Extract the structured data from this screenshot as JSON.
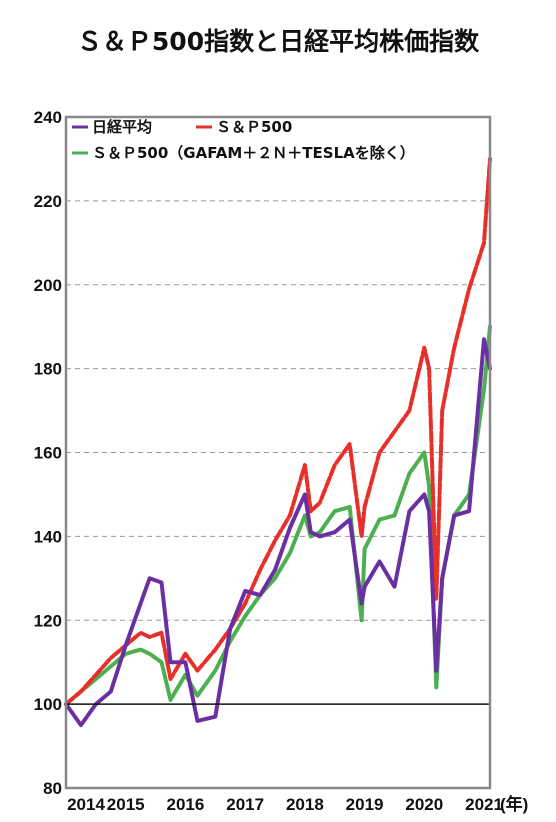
{
  "chart_data": {
    "type": "line",
    "title": "Ｓ＆Ｐ500指数と日経平均株価指数",
    "x_unit_label": "(年)",
    "x_ticks": [
      "2014",
      "2015",
      "2016",
      "2017",
      "2018",
      "2019",
      "2020",
      "2021"
    ],
    "y_ticks": [
      "80",
      "100",
      "120",
      "140",
      "160",
      "180",
      "200",
      "220",
      "240"
    ],
    "xlim": [
      2014.0,
      2021.1
    ],
    "ylim": [
      80,
      240
    ],
    "reference_line": 100,
    "grid": "horizontal dashed",
    "legend_position": "top-left",
    "x": [
      2014.0,
      2014.25,
      2014.5,
      2014.75,
      2015.0,
      2015.25,
      2015.4,
      2015.6,
      2015.75,
      2016.0,
      2016.2,
      2016.5,
      2016.75,
      2017.0,
      2017.25,
      2017.5,
      2017.75,
      2018.0,
      2018.1,
      2018.25,
      2018.5,
      2018.75,
      2018.95,
      2019.0,
      2019.25,
      2019.5,
      2019.75,
      2020.0,
      2020.08,
      2020.2,
      2020.3,
      2020.5,
      2020.75,
      2021.0,
      2021.1
    ],
    "series": [
      {
        "name": "日経平均",
        "color": "#6a2fa0",
        "values": [
          100,
          95,
          100,
          103,
          114,
          124,
          130,
          129,
          110,
          110,
          96,
          97,
          118,
          127,
          126,
          132,
          142,
          150,
          141,
          140,
          141,
          144,
          124,
          128,
          134,
          128,
          146,
          150,
          146,
          108,
          130,
          145,
          146,
          187,
          180
        ]
      },
      {
        "name": "Ｓ＆Ｐ500",
        "color": "#e8302a",
        "values": [
          100,
          103,
          107,
          111,
          114,
          117,
          116,
          117,
          106,
          112,
          108,
          113,
          118,
          124,
          132,
          139,
          145,
          157,
          146,
          148,
          157,
          162,
          140,
          147,
          160,
          165,
          170,
          185,
          180,
          125,
          170,
          185,
          199,
          210,
          230
        ]
      },
      {
        "name": "Ｓ＆Ｐ500（GAFAM＋２Ｎ＋TESLAを除く）",
        "color": "#4caf50",
        "values": [
          100,
          103,
          106,
          109,
          112,
          113,
          112,
          110,
          101,
          107,
          102,
          108,
          115,
          121,
          126,
          130,
          136,
          145,
          140,
          141,
          146,
          147,
          120,
          137,
          144,
          145,
          155,
          160,
          152,
          104,
          130,
          145,
          150,
          175,
          190
        ]
      }
    ]
  }
}
